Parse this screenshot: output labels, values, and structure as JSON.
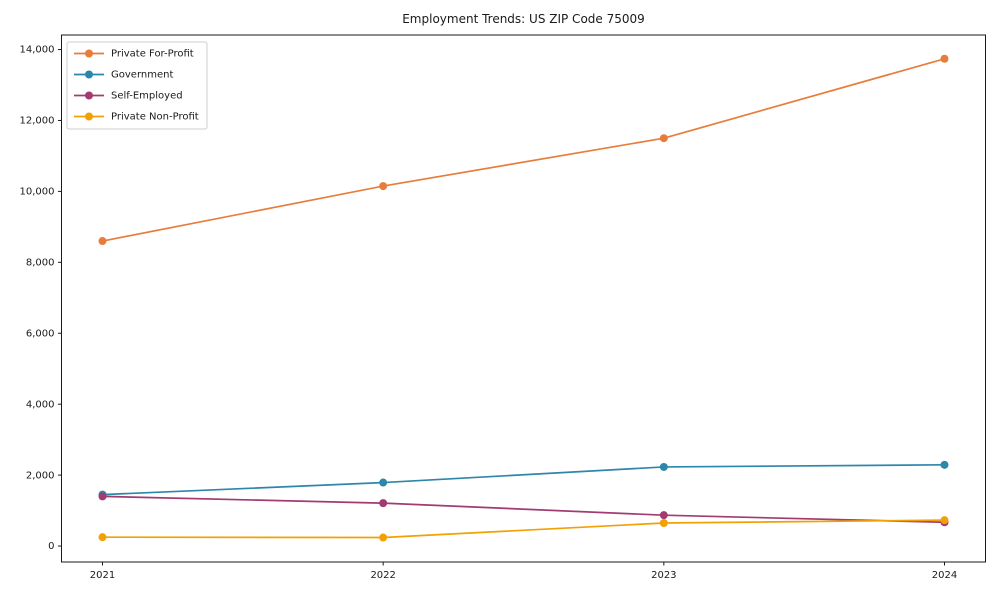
{
  "chart_data": {
    "type": "line",
    "title": "Employment Trends: US ZIP Code 75009",
    "x": [
      "2021",
      "2022",
      "2023",
      "2024"
    ],
    "series": [
      {
        "name": "Private For-Profit",
        "color": "#E87D3B",
        "values": [
          8600,
          10150,
          11500,
          13740
        ]
      },
      {
        "name": "Government",
        "color": "#2E86AB",
        "values": [
          1450,
          1790,
          2230,
          2290
        ]
      },
      {
        "name": "Self-Employed",
        "color": "#A23B72",
        "values": [
          1400,
          1210,
          870,
          670
        ]
      },
      {
        "name": "Private Non-Profit",
        "color": "#F2A104",
        "values": [
          250,
          240,
          650,
          730
        ]
      }
    ],
    "xlabel": "",
    "ylabel": "",
    "ylim": [
      -450,
      14410
    ],
    "yticks": [
      0,
      2000,
      4000,
      6000,
      8000,
      10000,
      12000,
      14000
    ],
    "ytick_labels": [
      "0",
      "2,000",
      "4,000",
      "6,000",
      "8,000",
      "10,000",
      "12,000",
      "14,000"
    ],
    "xtick_labels": [
      "2021",
      "2022",
      "2023",
      "2024"
    ],
    "grid": false,
    "marker": "circle",
    "legend": {
      "position": "upper left",
      "framed": true
    },
    "axis_color": "#1a1a1a",
    "legend_border_color": "#cfcfcf",
    "background_color": "#ffffff"
  }
}
